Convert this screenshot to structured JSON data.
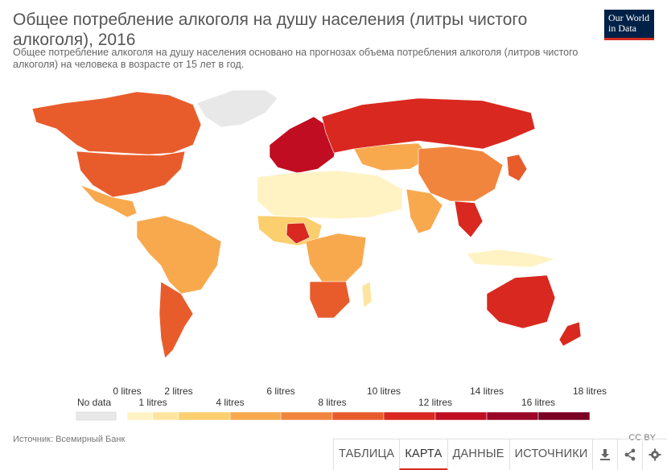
{
  "header": {
    "title": "Общее потребление алкоголя на душу населения (литры чистого алкоголя), 2016",
    "subtitle": "Общее потребление алкоголя на душу населения основано на прогнозах объема потребления алкоголя (литров чистого алкоголя) на человека в возрасте от 15 лет в год.",
    "logo_line1": "Our World",
    "logo_line2": "in Data"
  },
  "legend": {
    "no_data_label": "No data",
    "no_data_color": "#e8e8e8",
    "bins": [
      {
        "label": "0 litres",
        "color": "#fff3c4"
      },
      {
        "label": "1 litres",
        "color": "#fde5a0"
      },
      {
        "label": "2 litres",
        "color": "#fbcf6e"
      },
      {
        "label": "4 litres",
        "color": "#f8a94e"
      },
      {
        "label": "6 litres",
        "color": "#f2853d"
      },
      {
        "label": "8 litres",
        "color": "#e85c2c"
      },
      {
        "label": "10 litres",
        "color": "#d9281f"
      },
      {
        "label": "12 litres",
        "color": "#c10d21"
      },
      {
        "label": "14 litres",
        "color": "#9a0628"
      },
      {
        "label": "16 litres",
        "color": "#7a0222"
      },
      {
        "label": "18 litres",
        "color": ""
      }
    ]
  },
  "footer": {
    "source": "Источник: Всемирный Банк",
    "license": "CC BY",
    "tabs": [
      "ТАБЛИЦА",
      "КАРТА",
      "ДАННЫЕ",
      "ИСТОЧНИКИ"
    ],
    "active_tab": "КАРТА",
    "icons": [
      "download-icon",
      "share-icon",
      "settings-icon"
    ]
  },
  "colors": {
    "accent": "#d42b21",
    "brand": "#002147"
  }
}
